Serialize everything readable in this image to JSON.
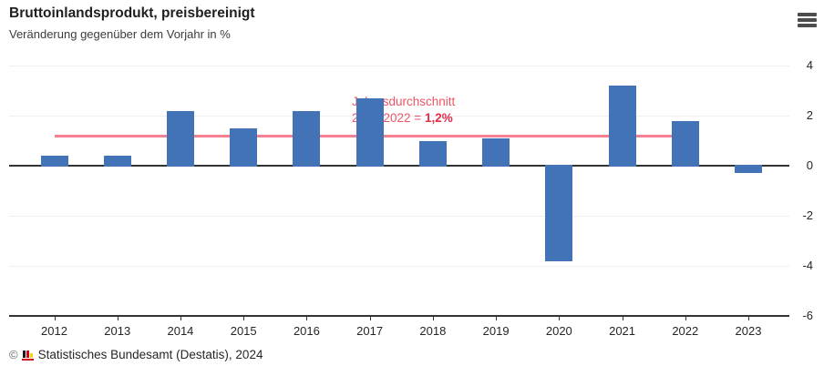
{
  "header": {
    "title": "Bruttoinlandsprodukt, preisbereinigt",
    "subtitle": "Veränderung gegenüber dem Vorjahr in %"
  },
  "menu_icon": "hamburger-menu-icon",
  "chart_data": {
    "type": "bar",
    "categories": [
      "2012",
      "2013",
      "2014",
      "2015",
      "2016",
      "2017",
      "2018",
      "2019",
      "2020",
      "2021",
      "2022",
      "2023"
    ],
    "values": [
      0.4,
      0.4,
      2.2,
      1.5,
      2.2,
      2.7,
      1.0,
      1.1,
      -3.8,
      3.2,
      1.8,
      -0.3
    ],
    "title": "Bruttoinlandsprodukt, preisbereinigt",
    "xlabel": "",
    "ylabel": "Veränderung gegenüber dem Vorjahr in %",
    "ylim": [
      -6,
      4
    ],
    "yticks": [
      4,
      2,
      0,
      -2,
      -4,
      -6
    ],
    "y_axis_side": "right",
    "grid": true,
    "bar_color": "#4173B6",
    "axis_color": "#333333",
    "grid_color": "#efefef",
    "reference_line": {
      "value": 1.2,
      "color": "#F5808F",
      "span_from": "2012",
      "span_to": "2022",
      "label_line1": "Jahresdurchschnitt",
      "label_line2_prefix": "2012-2022 = ",
      "label_line2_value": "1,2%",
      "label_color": "#EF5565",
      "label_value_color": "#E32C48"
    }
  },
  "footer": {
    "copyright": "©",
    "source": "Statistisches Bundesamt (Destatis), 2024",
    "logo_colors": {
      "bar1": "#1a1a1a",
      "bar2": "#d0021b",
      "bar3": "#ffd400",
      "baseline": "#d0021b"
    }
  }
}
